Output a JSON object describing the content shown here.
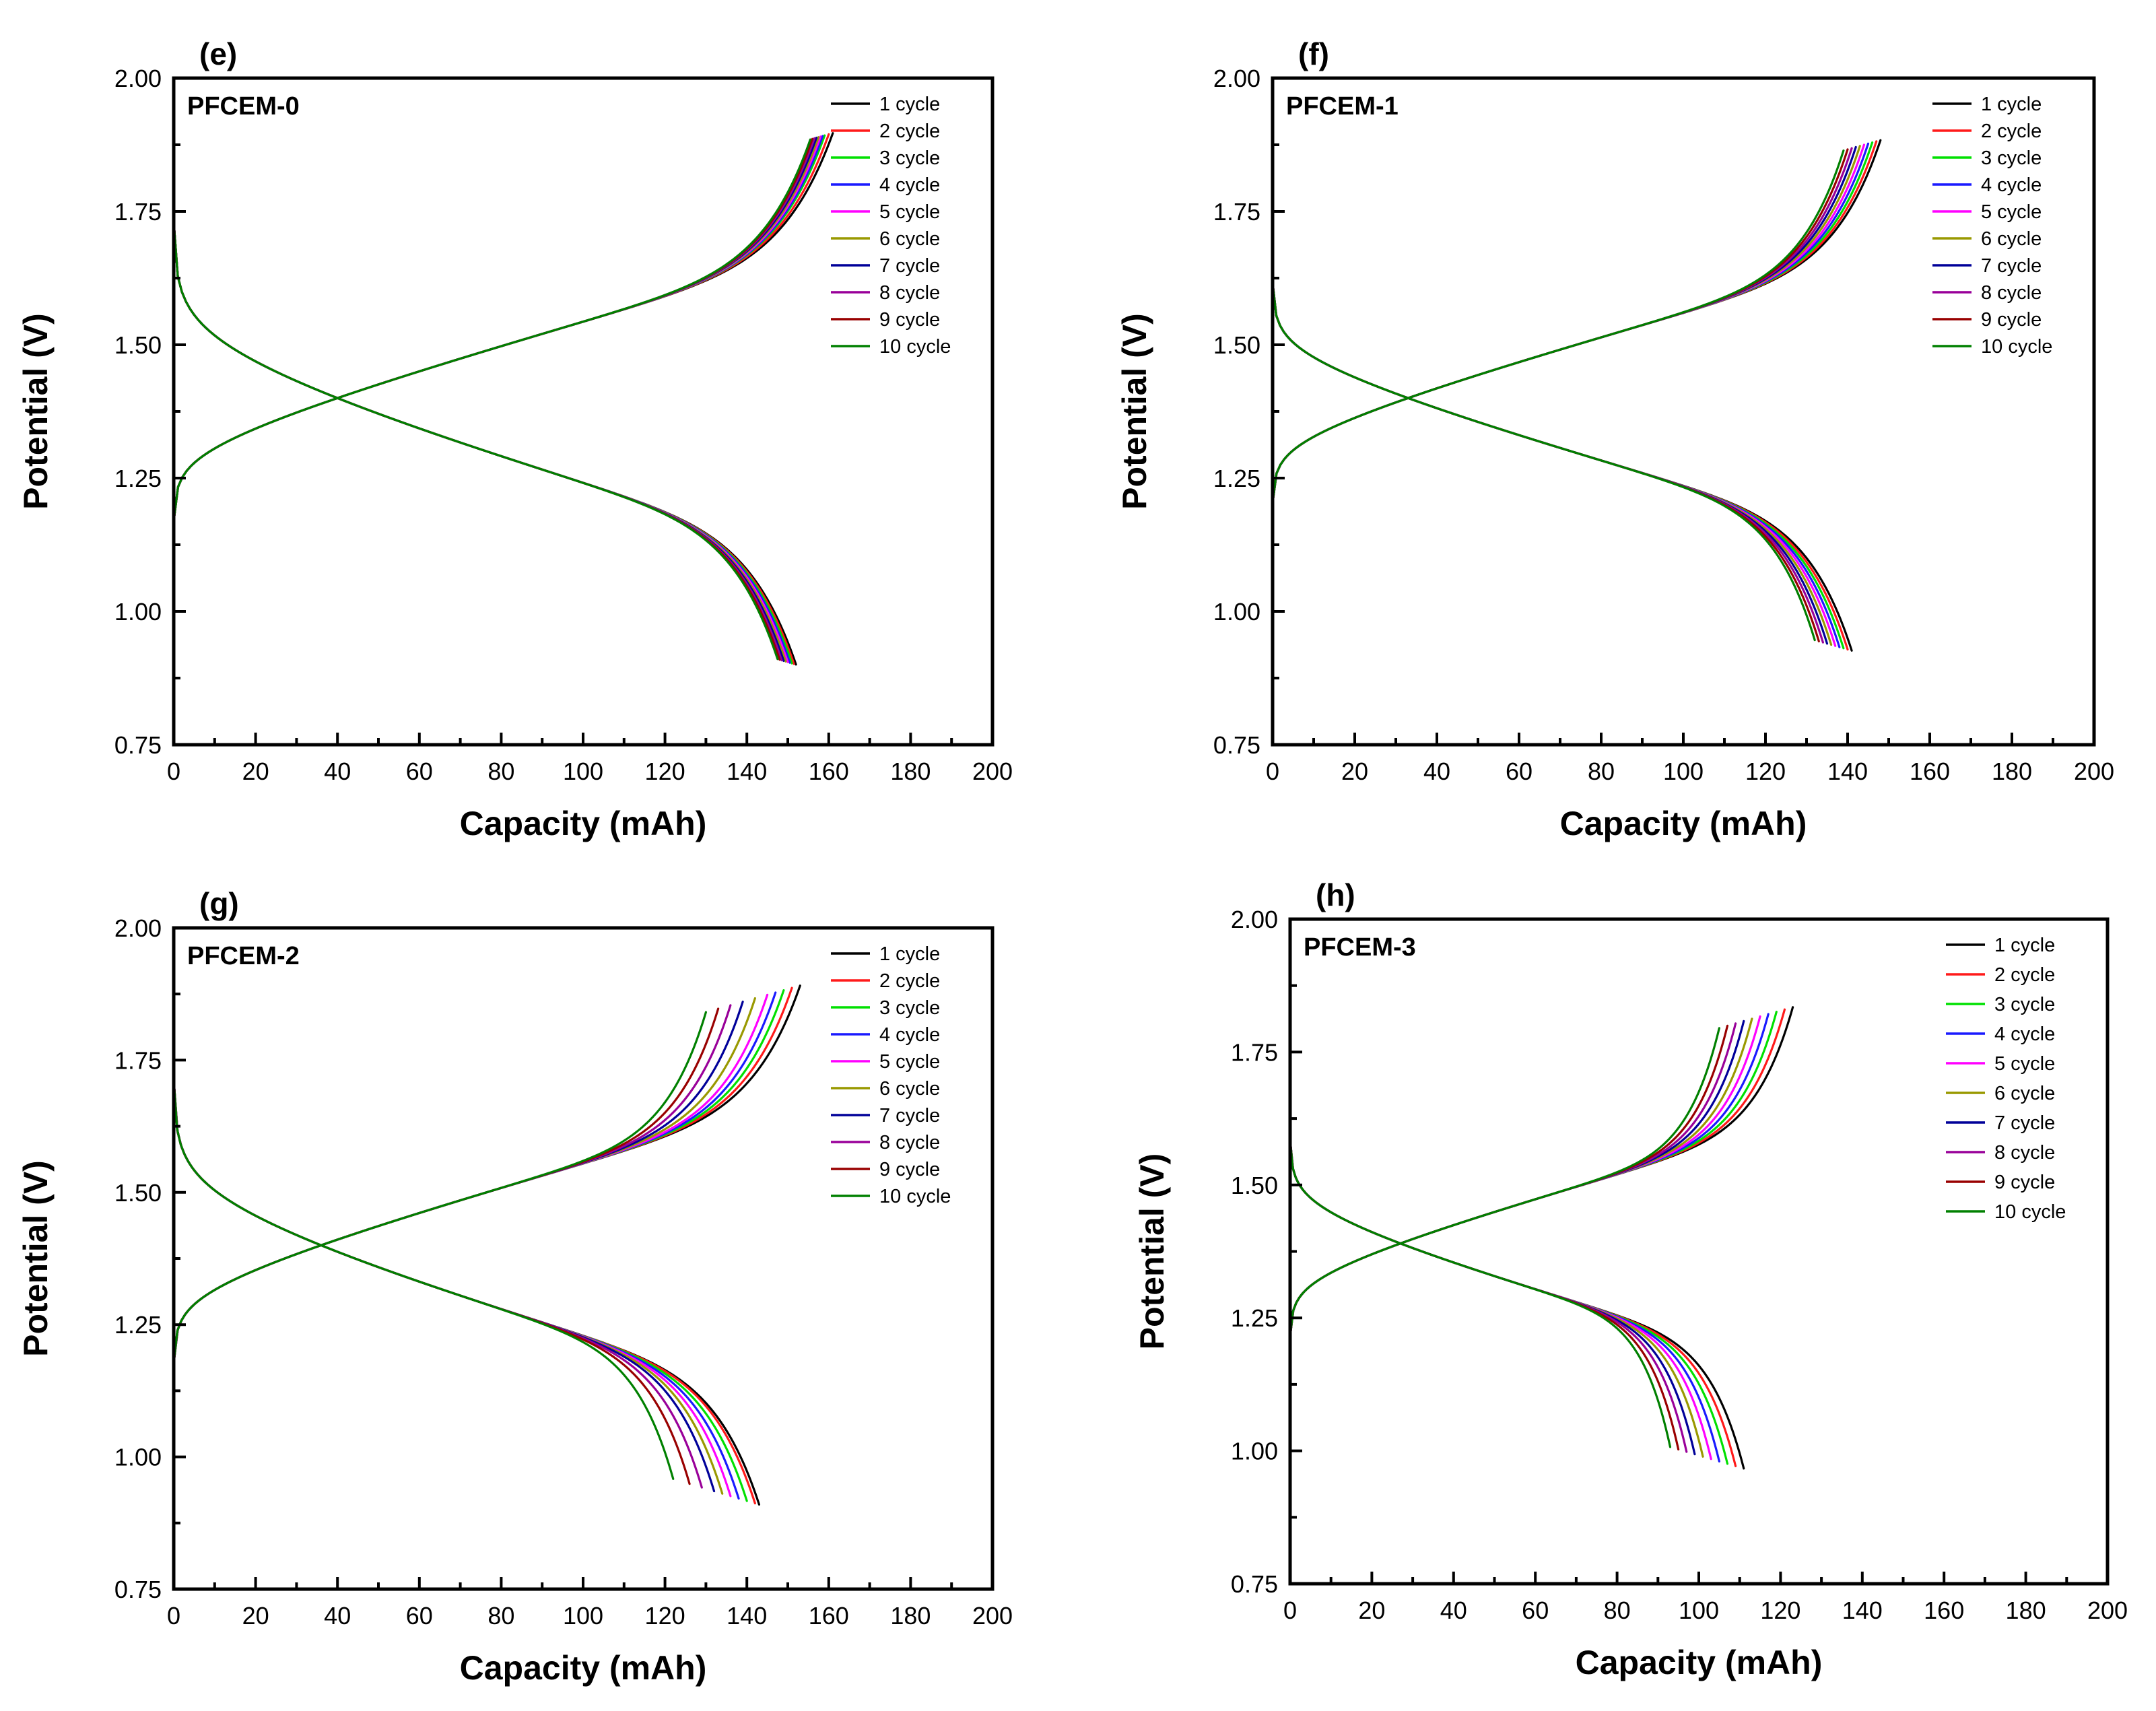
{
  "colors": [
    "#000000",
    "#ff1a1a",
    "#00e000",
    "#1a1aff",
    "#ff00ff",
    "#999900",
    "#000099",
    "#990099",
    "#990000",
    "#008000"
  ],
  "chart_data": [
    {
      "type": "line",
      "panel": "(e)",
      "sample": "PFCEM-0",
      "xlabel": "Capacity (mAh)",
      "ylabel": "Potential (V)",
      "xlim": [
        0,
        200
      ],
      "ylim": [
        0.75,
        2.0
      ],
      "xticks": [
        "0",
        "20",
        "40",
        "60",
        "80",
        "100",
        "120",
        "140",
        "160",
        "180",
        "200"
      ],
      "yticks": [
        "0.75",
        "1.00",
        "1.25",
        "1.50",
        "1.75",
        "2.00"
      ],
      "legend": [
        "1 cycle",
        "2 cycle",
        "3 cycle",
        "4 cycle",
        "5 cycle",
        "6 cycle",
        "7 cycle",
        "8 cycle",
        "9 cycle",
        "10 cycle"
      ],
      "legend_position": "top-right",
      "charge_capacity": [
        161,
        160,
        159,
        158.5,
        158,
        157.5,
        157,
        156.5,
        156,
        155.5
      ],
      "discharge_capacity": [
        152,
        151.5,
        151,
        150.5,
        150,
        149.5,
        149,
        148.5,
        148,
        147.5
      ],
      "charge_start_V": 1.25,
      "discharge_start_V": 1.65,
      "crossover": [
        40,
        1.4
      ]
    },
    {
      "type": "line",
      "panel": "(f)",
      "sample": "PFCEM-1",
      "xlabel": "Capacity (mAh)",
      "ylabel": "Potential (V)",
      "xlim": [
        0,
        200
      ],
      "ylim": [
        0.75,
        2.0
      ],
      "xticks": [
        "0",
        "20",
        "40",
        "60",
        "80",
        "100",
        "120",
        "140",
        "160",
        "180",
        "200"
      ],
      "yticks": [
        "0.75",
        "1.00",
        "1.25",
        "1.50",
        "1.75",
        "2.00"
      ],
      "legend": [
        "1 cycle",
        "2 cycle",
        "3 cycle",
        "4 cycle",
        "5 cycle",
        "6 cycle",
        "7 cycle",
        "8 cycle",
        "9 cycle",
        "10 cycle"
      ],
      "legend_position": "top-right",
      "charge_capacity": [
        148,
        147,
        146,
        145,
        144,
        143,
        142,
        141,
        140,
        139
      ],
      "discharge_capacity": [
        141,
        140,
        139,
        138,
        137,
        136,
        135,
        134,
        133,
        132
      ],
      "charge_start_V": 1.27,
      "discharge_start_V": 1.55,
      "crossover": [
        33,
        1.4
      ]
    },
    {
      "type": "line",
      "panel": "(g)",
      "sample": "PFCEM-2",
      "xlabel": "Capacity (mAh)",
      "ylabel": "Potential (V)",
      "xlim": [
        0,
        200
      ],
      "ylim": [
        0.75,
        2.0
      ],
      "xticks": [
        "0",
        "20",
        "40",
        "60",
        "80",
        "100",
        "120",
        "140",
        "160",
        "180",
        "200"
      ],
      "yticks": [
        "0.75",
        "1.00",
        "1.25",
        "1.50",
        "1.75",
        "2.00"
      ],
      "legend": [
        "1 cycle",
        "2 cycle",
        "3 cycle",
        "4 cycle",
        "5 cycle",
        "6 cycle",
        "7 cycle",
        "8 cycle",
        "9 cycle",
        "10 cycle"
      ],
      "legend_position": "top-right",
      "charge_capacity": [
        153,
        151,
        149,
        147,
        145,
        142,
        139,
        136,
        133,
        130
      ],
      "discharge_capacity": [
        143,
        142,
        140,
        138,
        136,
        134,
        132,
        129,
        126,
        122
      ],
      "charge_start_V": 1.25,
      "discharge_start_V": 1.64,
      "crossover": [
        36,
        1.4
      ]
    },
    {
      "type": "line",
      "panel": "(h)",
      "sample": "PFCEM-3",
      "xlabel": "Capacity (mAh)",
      "ylabel": "Potential (V)",
      "xlim": [
        0,
        200
      ],
      "ylim": [
        0.75,
        2.0
      ],
      "xticks": [
        "0",
        "20",
        "40",
        "60",
        "80",
        "100",
        "120",
        "140",
        "160",
        "180",
        "200"
      ],
      "yticks": [
        "0.75",
        "1.00",
        "1.25",
        "1.50",
        "1.75",
        "2.00"
      ],
      "legend": [
        "1 cycle",
        "2 cycle",
        "3 cycle",
        "4 cycle",
        "5 cycle",
        "6 cycle",
        "7 cycle",
        "8 cycle",
        "9 cycle",
        "10 cycle"
      ],
      "legend_position": "top-right",
      "charge_capacity": [
        123,
        121,
        119,
        117,
        115,
        113,
        111,
        109,
        107,
        105
      ],
      "discharge_capacity": [
        111,
        109,
        107,
        105,
        103,
        101,
        99,
        97,
        95,
        93
      ],
      "charge_start_V": 1.27,
      "discharge_start_V": 1.53,
      "crossover": [
        27,
        1.39
      ]
    }
  ]
}
